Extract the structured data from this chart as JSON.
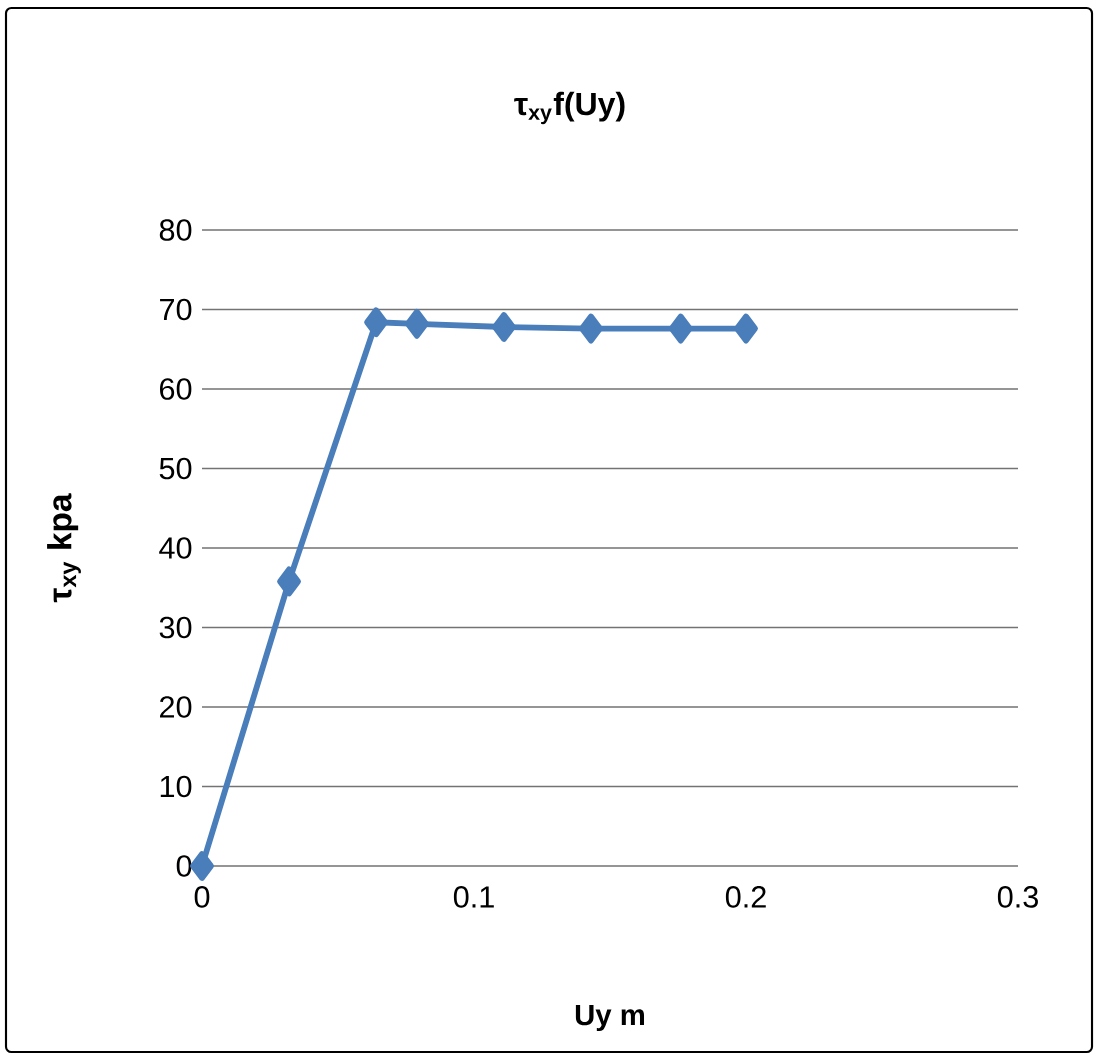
{
  "chart_data": {
    "type": "line",
    "title": "τ$_{xy}$f(Uy)",
    "xlabel": "Uy m",
    "ylabel": "τ$_{xy}$ kpa",
    "series": [
      {
        "color": "#4a7ebb",
        "x": [
          0,
          0.032,
          0.064,
          0.079,
          0.111,
          0.143,
          0.176,
          0.2
        ],
        "values": [
          0,
          35.8,
          68.4,
          68.2,
          67.8,
          67.6,
          67.6,
          67.6
        ]
      }
    ],
    "xlim": [
      0,
      0.3
    ],
    "xticks": [
      0,
      0.1,
      0.2,
      0.3
    ],
    "ylim": [
      0,
      80
    ],
    "yticks": [
      0,
      10,
      20,
      30,
      40,
      50,
      60,
      70,
      80
    ],
    "grid": "y",
    "marker": "diamond",
    "line_style": "solid"
  }
}
